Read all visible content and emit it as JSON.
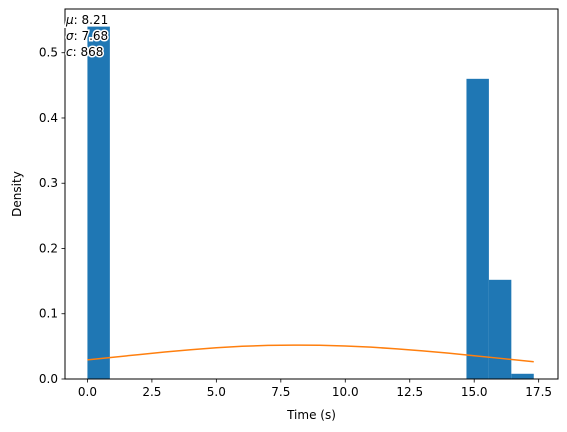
{
  "chart_data": {
    "type": "bar",
    "xlabel": "Time (s)",
    "ylabel": "Density",
    "xlim": [
      -0.87,
      18.25
    ],
    "ylim": [
      0,
      0.567
    ],
    "x_ticks": [
      0.0,
      2.5,
      5.0,
      7.5,
      10.0,
      12.5,
      15.0,
      17.5
    ],
    "x_tick_labels": [
      "0.0",
      "2.5",
      "5.0",
      "7.5",
      "10.0",
      "12.5",
      "15.0",
      "17.5"
    ],
    "y_ticks": [
      0.0,
      0.1,
      0.2,
      0.3,
      0.4,
      0.5
    ],
    "y_tick_labels": [
      "0.0",
      "0.1",
      "0.2",
      "0.3",
      "0.4",
      "0.5"
    ],
    "grid": false,
    "series": [
      {
        "kind": "histogram",
        "color": "#1f77b4",
        "bins": [
          {
            "x0": 0.0,
            "x1": 0.87,
            "value": 0.54
          },
          {
            "x0": 14.7,
            "x1": 15.57,
            "value": 0.46
          },
          {
            "x0": 15.57,
            "x1": 16.44,
            "value": 0.152
          },
          {
            "x0": 16.44,
            "x1": 17.31,
            "value": 0.008
          }
        ]
      },
      {
        "kind": "line",
        "color": "#ff7f0e",
        "x": [
          0.0,
          1.0,
          2.0,
          3.0,
          4.0,
          5.0,
          6.0,
          7.0,
          8.0,
          8.21,
          9.0,
          10.0,
          11.0,
          12.0,
          13.0,
          14.0,
          15.0,
          16.0,
          17.31
        ],
        "y": [
          0.0293,
          0.0334,
          0.0374,
          0.0413,
          0.0448,
          0.0478,
          0.0501,
          0.0515,
          0.0519,
          0.0519,
          0.0517,
          0.0506,
          0.0488,
          0.0462,
          0.0431,
          0.0396,
          0.0357,
          0.0317,
          0.0265
        ]
      }
    ],
    "annotations": [
      {
        "symbol": "μ",
        "value": "8.21"
      },
      {
        "symbol": "σ",
        "value": "7.68"
      },
      {
        "symbol": "c",
        "value": "868"
      }
    ]
  }
}
